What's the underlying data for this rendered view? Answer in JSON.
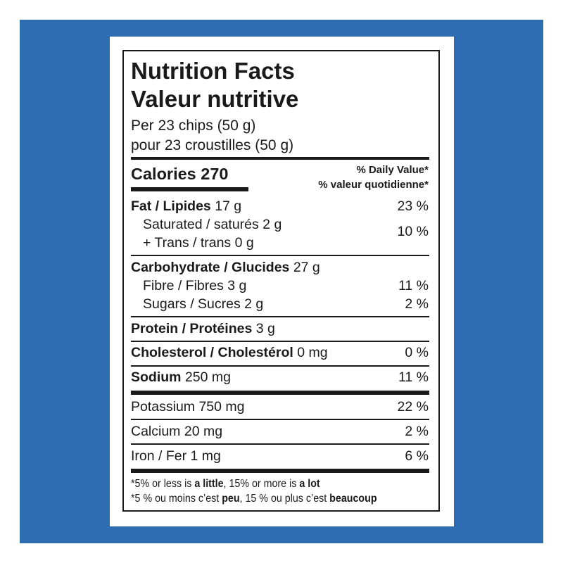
{
  "colors": {
    "background": "#2f6db3",
    "panel": "#ffffff",
    "text": "#1a1a1a"
  },
  "header": {
    "title_en": "Nutrition Facts",
    "title_fr": "Valeur nutritive",
    "serving_en": "Per 23 chips (50 g)",
    "serving_fr": "pour 23 croustilles (50 g)"
  },
  "calories": {
    "label": "Calories",
    "value": "270",
    "dv_en": "% Daily Value*",
    "dv_fr": "% valeur quotidienne*"
  },
  "rows": {
    "fat": {
      "label": "Fat / Lipides",
      "amount": "17 g",
      "dv": "23 %"
    },
    "saturated": {
      "label": "Saturated / saturés 2 g"
    },
    "trans": {
      "label": "+ Trans / trans 0 g"
    },
    "sat_trans_dv": "10 %",
    "carb": {
      "label": "Carbohydrate / Glucides",
      "amount": "27 g"
    },
    "fibre": {
      "label": "Fibre / Fibres 3 g",
      "dv": "11 %"
    },
    "sugars": {
      "label": "Sugars / Sucres 2 g",
      "dv": "2 %"
    },
    "protein": {
      "label": "Protein / Protéines",
      "amount": "3 g"
    },
    "cholesterol": {
      "label": "Cholesterol / Cholestérol",
      "amount": "0 mg",
      "dv": "0 %"
    },
    "sodium": {
      "label": "Sodium",
      "amount": "250 mg",
      "dv": "11 %"
    },
    "potassium": {
      "label": "Potassium 750 mg",
      "dv": "22 %"
    },
    "calcium": {
      "label": "Calcium 20 mg",
      "dv": "2 %"
    },
    "iron": {
      "label": "Iron / Fer 1 mg",
      "dv": "6 %"
    }
  },
  "footnote": {
    "en": {
      "p1": "*5% or less is ",
      "b1": "a little",
      "p2": ", 15% or more is ",
      "b2": "a lot"
    },
    "fr": {
      "p1": "*5 % ou moins c’est ",
      "b1": "peu",
      "p2": ", 15 % ou plus c’est ",
      "b2": "beaucoup"
    }
  }
}
